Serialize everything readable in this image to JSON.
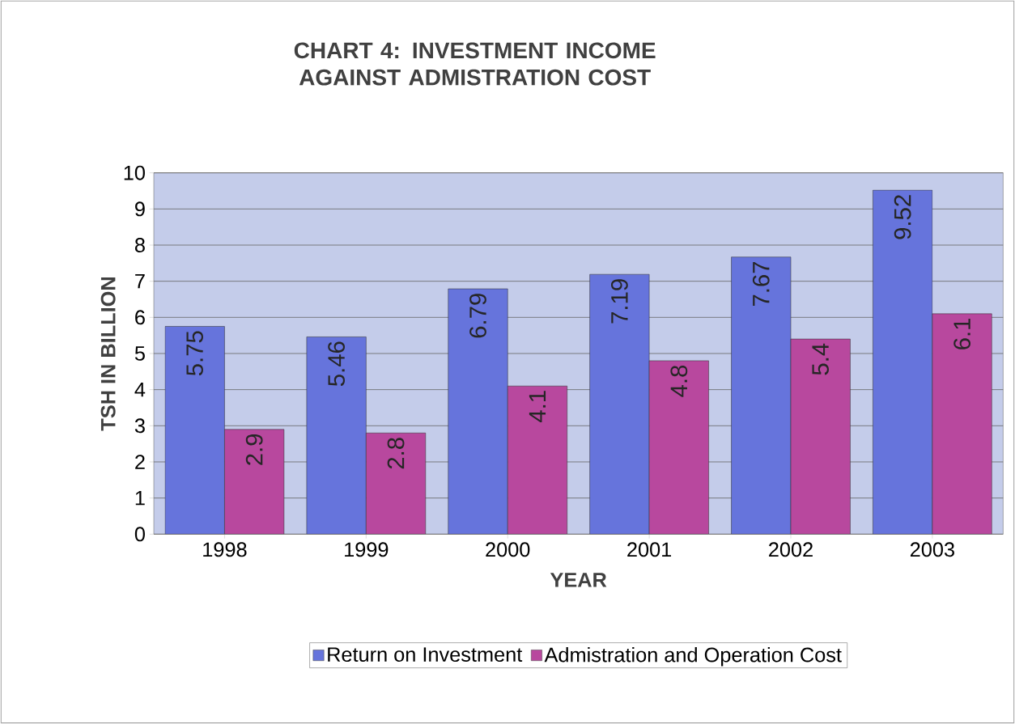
{
  "chart_data": {
    "type": "bar",
    "title": "CHART 4: INVESTMENT INCOME AGAINST ADMISTRATION COST",
    "xlabel": "YEAR",
    "ylabel": "TSH IN BILLION",
    "categories": [
      "1998",
      "1999",
      "2000",
      "2001",
      "2002",
      "2003"
    ],
    "series": [
      {
        "name": "Return on Investment",
        "color": "#6674dc",
        "values": [
          5.75,
          5.46,
          6.79,
          7.19,
          7.67,
          9.52
        ]
      },
      {
        "name": "Admistration and Operation Cost",
        "color": "#b8489e",
        "values": [
          2.9,
          2.8,
          4.1,
          4.8,
          5.4,
          6.1
        ]
      }
    ],
    "ylim": [
      0,
      10
    ],
    "yticks": [
      0,
      1,
      2,
      3,
      4,
      5,
      6,
      7,
      8,
      9,
      10
    ],
    "grid": "y",
    "legend": "bottom",
    "data_labels": true
  }
}
